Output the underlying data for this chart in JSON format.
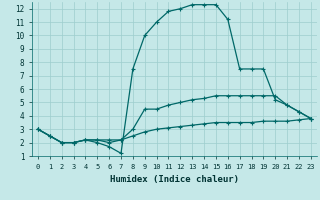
{
  "xlabel": "Humidex (Indice chaleur)",
  "xlim": [
    -0.5,
    23.5
  ],
  "ylim": [
    1,
    12.5
  ],
  "yticks": [
    1,
    2,
    3,
    4,
    5,
    6,
    7,
    8,
    9,
    10,
    11,
    12
  ],
  "xticks": [
    0,
    1,
    2,
    3,
    4,
    5,
    6,
    7,
    8,
    9,
    10,
    11,
    12,
    13,
    14,
    15,
    16,
    17,
    18,
    19,
    20,
    21,
    22,
    23
  ],
  "background_color": "#c5e8e8",
  "grid_color": "#9ecece",
  "line_color": "#006868",
  "lines": [
    {
      "x": [
        0,
        1,
        2,
        3,
        4,
        5,
        6,
        7,
        8,
        9,
        10,
        11,
        12,
        13,
        14,
        15,
        16,
        17,
        18,
        19,
        20,
        21,
        22,
        23
      ],
      "y": [
        3.0,
        2.5,
        2.0,
        2.0,
        2.2,
        2.0,
        1.7,
        1.2,
        7.5,
        10.0,
        11.0,
        11.8,
        12.0,
        12.3,
        12.3,
        12.3,
        11.2,
        7.5,
        7.5,
        7.5,
        5.2,
        4.8,
        4.3,
        3.8
      ]
    },
    {
      "x": [
        0,
        1,
        2,
        3,
        4,
        5,
        6,
        7,
        8,
        9,
        10,
        11,
        12,
        13,
        14,
        15,
        16,
        17,
        18,
        19,
        20,
        21,
        22,
        23
      ],
      "y": [
        3.0,
        2.5,
        2.0,
        2.0,
        2.2,
        2.2,
        2.0,
        2.2,
        3.0,
        4.5,
        4.5,
        4.8,
        5.0,
        5.2,
        5.3,
        5.5,
        5.5,
        5.5,
        5.5,
        5.5,
        5.5,
        4.8,
        4.3,
        3.8
      ]
    },
    {
      "x": [
        0,
        1,
        2,
        3,
        4,
        5,
        6,
        7,
        8,
        9,
        10,
        11,
        12,
        13,
        14,
        15,
        16,
        17,
        18,
        19,
        20,
        21,
        22,
        23
      ],
      "y": [
        3.0,
        2.5,
        2.0,
        2.0,
        2.2,
        2.2,
        2.2,
        2.2,
        2.5,
        2.8,
        3.0,
        3.1,
        3.2,
        3.3,
        3.4,
        3.5,
        3.5,
        3.5,
        3.5,
        3.6,
        3.6,
        3.6,
        3.7,
        3.8
      ]
    }
  ]
}
